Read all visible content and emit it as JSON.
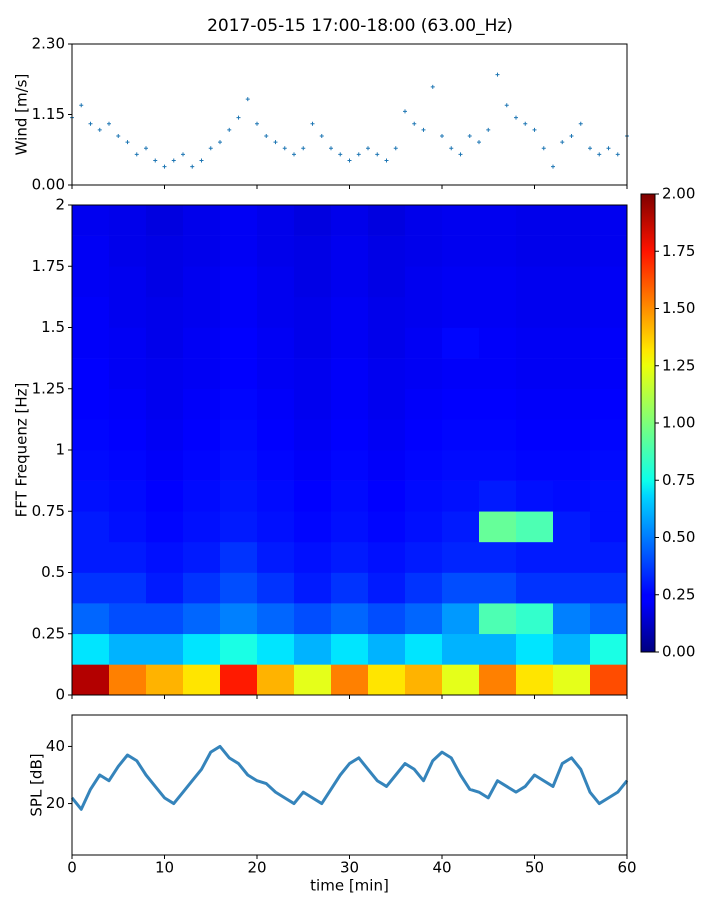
{
  "title": "2017-05-15 17:00-18:00 (63.00_Hz)",
  "chart_data": [
    {
      "type": "scatter",
      "ylabel": "Wind [m/s]",
      "color": "#1f77b4",
      "x": [
        0,
        1,
        2,
        3,
        4,
        5,
        6,
        7,
        8,
        9,
        10,
        11,
        12,
        13,
        14,
        15,
        16,
        17,
        18,
        19,
        20,
        21,
        22,
        23,
        24,
        25,
        26,
        27,
        28,
        29,
        30,
        31,
        32,
        33,
        34,
        35,
        36,
        37,
        38,
        39,
        40,
        41,
        42,
        43,
        44,
        45,
        46,
        47,
        48,
        49,
        50,
        51,
        52,
        53,
        54,
        55,
        56,
        57,
        58,
        59,
        60
      ],
      "values": [
        1.1,
        1.3,
        1.0,
        0.9,
        1.0,
        0.8,
        0.7,
        0.5,
        0.6,
        0.4,
        0.3,
        0.4,
        0.5,
        0.3,
        0.4,
        0.6,
        0.7,
        0.9,
        1.1,
        1.4,
        1.0,
        0.8,
        0.7,
        0.6,
        0.5,
        0.6,
        1.0,
        0.8,
        0.6,
        0.5,
        0.4,
        0.5,
        0.6,
        0.5,
        0.4,
        0.6,
        1.2,
        1.0,
        0.9,
        1.6,
        0.8,
        0.6,
        0.5,
        0.8,
        0.7,
        0.9,
        1.8,
        1.3,
        1.1,
        1.0,
        0.9,
        0.6,
        0.3,
        0.7,
        0.8,
        1.0,
        0.6,
        0.5,
        0.6,
        0.5,
        0.8
      ],
      "xlim": [
        0,
        60
      ],
      "xticks": [
        0,
        10,
        20,
        30,
        40,
        50,
        60
      ],
      "ylim": [
        0,
        2.3
      ],
      "yticks": [
        {
          "value": 0,
          "label": "0.00"
        },
        {
          "value": 1.15,
          "label": "1.15"
        },
        {
          "value": 2.3,
          "label": "2.30"
        }
      ]
    },
    {
      "type": "heatmap",
      "ylabel": "FFT Frequenz [Hz]",
      "x": [
        2,
        6,
        10,
        14,
        18,
        22,
        26,
        30,
        34,
        38,
        42,
        46,
        50,
        54,
        58
      ],
      "y": [
        0.0625,
        0.1875,
        0.3125,
        0.4375,
        0.5625,
        0.6875,
        0.8125,
        0.9375,
        1.0625,
        1.1875,
        1.3125,
        1.4375,
        1.5625,
        1.6875,
        1.8125,
        1.9375
      ],
      "z": [
        [
          1.9,
          1.5,
          1.4,
          1.3,
          1.7,
          1.4,
          1.2,
          1.5,
          1.3,
          1.4,
          1.2,
          1.5,
          1.3,
          1.2,
          1.6
        ],
        [
          0.7,
          0.6,
          0.6,
          0.7,
          0.8,
          0.7,
          0.6,
          0.7,
          0.6,
          0.7,
          0.6,
          0.6,
          0.7,
          0.6,
          0.8
        ],
        [
          0.45,
          0.4,
          0.4,
          0.45,
          0.5,
          0.45,
          0.4,
          0.45,
          0.4,
          0.45,
          0.55,
          0.9,
          0.85,
          0.5,
          0.45
        ],
        [
          0.35,
          0.35,
          0.3,
          0.35,
          0.4,
          0.35,
          0.3,
          0.35,
          0.3,
          0.35,
          0.4,
          0.4,
          0.35,
          0.35,
          0.35
        ],
        [
          0.3,
          0.3,
          0.28,
          0.3,
          0.35,
          0.3,
          0.28,
          0.3,
          0.28,
          0.3,
          0.32,
          0.32,
          0.3,
          0.3,
          0.3
        ],
        [
          0.3,
          0.28,
          0.26,
          0.28,
          0.3,
          0.28,
          0.26,
          0.28,
          0.26,
          0.28,
          0.3,
          0.95,
          0.9,
          0.3,
          0.28
        ],
        [
          0.28,
          0.27,
          0.25,
          0.27,
          0.29,
          0.27,
          0.25,
          0.27,
          0.25,
          0.27,
          0.28,
          0.3,
          0.28,
          0.27,
          0.28
        ],
        [
          0.27,
          0.26,
          0.24,
          0.26,
          0.28,
          0.26,
          0.24,
          0.26,
          0.24,
          0.26,
          0.27,
          0.27,
          0.26,
          0.26,
          0.27
        ],
        [
          0.26,
          0.25,
          0.23,
          0.25,
          0.27,
          0.25,
          0.23,
          0.25,
          0.23,
          0.25,
          0.26,
          0.26,
          0.25,
          0.25,
          0.26
        ],
        [
          0.25,
          0.24,
          0.22,
          0.24,
          0.26,
          0.24,
          0.22,
          0.24,
          0.22,
          0.24,
          0.25,
          0.25,
          0.24,
          0.24,
          0.25
        ],
        [
          0.25,
          0.23,
          0.22,
          0.23,
          0.25,
          0.23,
          0.22,
          0.24,
          0.22,
          0.23,
          0.24,
          0.24,
          0.23,
          0.23,
          0.24
        ],
        [
          0.24,
          0.23,
          0.21,
          0.23,
          0.25,
          0.23,
          0.21,
          0.23,
          0.21,
          0.23,
          0.26,
          0.24,
          0.23,
          0.23,
          0.24
        ],
        [
          0.24,
          0.22,
          0.21,
          0.22,
          0.24,
          0.22,
          0.21,
          0.23,
          0.21,
          0.22,
          0.23,
          0.23,
          0.22,
          0.22,
          0.23
        ],
        [
          0.23,
          0.22,
          0.2,
          0.22,
          0.24,
          0.22,
          0.2,
          0.22,
          0.2,
          0.22,
          0.23,
          0.23,
          0.22,
          0.22,
          0.23
        ],
        [
          0.23,
          0.21,
          0.2,
          0.21,
          0.23,
          0.21,
          0.2,
          0.22,
          0.2,
          0.21,
          0.22,
          0.22,
          0.21,
          0.21,
          0.22
        ],
        [
          0.22,
          0.21,
          0.19,
          0.21,
          0.23,
          0.21,
          0.19,
          0.21,
          0.19,
          0.21,
          0.22,
          0.22,
          0.21,
          0.21,
          0.22
        ]
      ],
      "zlim": [
        0,
        2
      ],
      "zticks": [
        {
          "value": 0,
          "label": "0.00"
        },
        {
          "value": 0.25,
          "label": "0.25"
        },
        {
          "value": 0.5,
          "label": "0.50"
        },
        {
          "value": 0.75,
          "label": "0.75"
        },
        {
          "value": 1,
          "label": "1.00"
        },
        {
          "value": 1.25,
          "label": "1.25"
        },
        {
          "value": 1.5,
          "label": "1.50"
        },
        {
          "value": 1.75,
          "label": "1.75"
        },
        {
          "value": 2,
          "label": "2.00"
        }
      ],
      "xlim": [
        0,
        60
      ],
      "xticks": [
        0,
        10,
        20,
        30,
        40,
        50,
        60
      ],
      "ylim": [
        0,
        2
      ],
      "yticks": [
        0,
        0.25,
        0.5,
        0.75,
        1,
        1.25,
        1.5,
        1.75,
        2
      ]
    },
    {
      "type": "line",
      "ylabel": "SPL [dB]",
      "xlabel": "time [min]",
      "color": "#1f77b4",
      "x": [
        0,
        1,
        2,
        3,
        4,
        5,
        6,
        7,
        8,
        9,
        10,
        11,
        12,
        13,
        14,
        15,
        16,
        17,
        18,
        19,
        20,
        21,
        22,
        23,
        24,
        25,
        26,
        27,
        28,
        29,
        30,
        31,
        32,
        33,
        34,
        35,
        36,
        37,
        38,
        39,
        40,
        41,
        42,
        43,
        44,
        45,
        46,
        47,
        48,
        49,
        50,
        51,
        52,
        53,
        54,
        55,
        56,
        57,
        58,
        59,
        60
      ],
      "values": [
        22,
        18,
        25,
        30,
        28,
        33,
        37,
        35,
        30,
        26,
        22,
        20,
        24,
        28,
        32,
        38,
        40,
        36,
        34,
        30,
        28,
        27,
        24,
        22,
        20,
        24,
        22,
        20,
        25,
        30,
        34,
        36,
        32,
        28,
        26,
        30,
        34,
        32,
        28,
        35,
        38,
        36,
        30,
        25,
        24,
        22,
        28,
        26,
        24,
        26,
        30,
        28,
        26,
        34,
        36,
        32,
        24,
        20,
        22,
        24,
        28
      ],
      "xlim": [
        0,
        60
      ],
      "xticks": [
        0,
        10,
        20,
        30,
        40,
        50,
        60
      ],
      "ylim": [
        2,
        51
      ],
      "yticks": [
        20,
        40
      ]
    }
  ]
}
